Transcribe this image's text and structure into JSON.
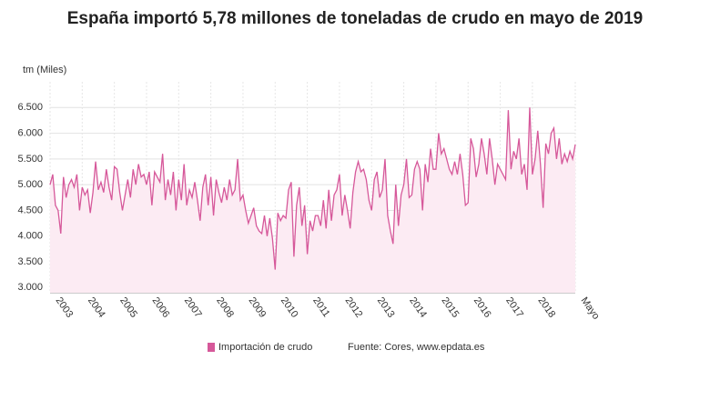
{
  "chart_data": {
    "type": "line",
    "title": "España importó 5,78 millones de toneladas de crudo en mayo de 2019",
    "y_label": "tm (Miles)",
    "source": "Fuente: Cores, www.epdata.es",
    "legend": "bottom",
    "categories": [
      "2003",
      null,
      null,
      null,
      null,
      null,
      null,
      null,
      null,
      null,
      null,
      null,
      "2004",
      null,
      null,
      null,
      null,
      null,
      null,
      null,
      null,
      null,
      null,
      null,
      "2005",
      null,
      null,
      null,
      null,
      null,
      null,
      null,
      null,
      null,
      null,
      null,
      "2006",
      null,
      null,
      null,
      null,
      null,
      null,
      null,
      null,
      null,
      null,
      null,
      "2007",
      null,
      null,
      null,
      null,
      null,
      null,
      null,
      null,
      null,
      null,
      null,
      "2008",
      null,
      null,
      null,
      null,
      null,
      null,
      null,
      null,
      null,
      null,
      null,
      "2009",
      null,
      null,
      null,
      null,
      null,
      null,
      null,
      null,
      null,
      null,
      null,
      "2010",
      null,
      null,
      null,
      null,
      null,
      null,
      null,
      null,
      null,
      null,
      null,
      "2011",
      null,
      null,
      null,
      null,
      null,
      null,
      null,
      null,
      null,
      null,
      null,
      "2012",
      null,
      null,
      null,
      null,
      null,
      null,
      null,
      null,
      null,
      null,
      null,
      "2013",
      null,
      null,
      null,
      null,
      null,
      null,
      null,
      null,
      null,
      null,
      null,
      "2014",
      null,
      null,
      null,
      null,
      null,
      null,
      null,
      null,
      null,
      null,
      null,
      "2015",
      null,
      null,
      null,
      null,
      null,
      null,
      null,
      null,
      null,
      null,
      null,
      "2016",
      null,
      null,
      null,
      null,
      null,
      null,
      null,
      null,
      null,
      null,
      null,
      "2017",
      null,
      null,
      null,
      null,
      null,
      null,
      null,
      null,
      null,
      null,
      null,
      "2018",
      null,
      null,
      null,
      null,
      null,
      null,
      null,
      null,
      null,
      null,
      null,
      null,
      null,
      null,
      null,
      "Mayo"
    ],
    "series": [
      {
        "name": "Importación de crudo",
        "color": "#d6589a",
        "values": [
          5000,
          5200,
          4600,
          4500,
          4050,
          5150,
          4750,
          5000,
          5100,
          4950,
          5200,
          4500,
          4950,
          4800,
          4900,
          4450,
          4850,
          5450,
          4900,
          5050,
          4850,
          5300,
          4950,
          4700,
          5350,
          5300,
          4850,
          4500,
          4800,
          5100,
          4750,
          5300,
          5000,
          5400,
          5150,
          5200,
          5000,
          5250,
          4600,
          5250,
          5150,
          5050,
          5600,
          4700,
          5100,
          4800,
          5250,
          4500,
          5100,
          4700,
          5400,
          4600,
          4900,
          4750,
          5050,
          4700,
          4300,
          4950,
          5200,
          4600,
          5150,
          4400,
          5100,
          4850,
          4650,
          4950,
          4700,
          5100,
          4800,
          4900,
          5500,
          4700,
          4800,
          4500,
          4250,
          4400,
          4550,
          4200,
          4100,
          4050,
          4400,
          4000,
          4350,
          3950,
          3350,
          4450,
          4300,
          4400,
          4350,
          4900,
          5050,
          3600,
          4600,
          4950,
          4200,
          4600,
          3650,
          4300,
          4100,
          4400,
          4400,
          4200,
          4700,
          4150,
          4900,
          4300,
          4800,
          4900,
          5200,
          4400,
          4800,
          4500,
          4150,
          4850,
          5250,
          5450,
          5250,
          5300,
          5100,
          4700,
          4500,
          5100,
          5250,
          4750,
          4900,
          5500,
          4400,
          4100,
          3850,
          5000,
          4200,
          4800,
          5000,
          5500,
          4750,
          4800,
          5300,
          5450,
          5300,
          4500,
          5400,
          5050,
          5700,
          5300,
          5300,
          6000,
          5600,
          5700,
          5500,
          5300,
          5200,
          5450,
          5200,
          5600,
          5200,
          4600,
          4650,
          5900,
          5700,
          5150,
          5400,
          5900,
          5600,
          5200,
          5900,
          5500,
          5000,
          5400,
          5300,
          5200,
          5100,
          6450,
          5300,
          5650,
          5500,
          5900,
          5200,
          5400,
          4900,
          6500,
          5200,
          5500,
          6050,
          5400,
          4550,
          5800,
          5600,
          6000,
          6100,
          5500,
          5900,
          5400,
          5600,
          5450,
          5650,
          5500,
          5780
        ]
      }
    ],
    "ylim": [
      2900,
      7000
    ],
    "yticks": [
      {
        "value": 3000,
        "label": "3.000"
      },
      {
        "value": 3500,
        "label": "3.500"
      },
      {
        "value": 4000,
        "label": "4.000"
      },
      {
        "value": 4500,
        "label": "4.500"
      },
      {
        "value": 5000,
        "label": "5.000"
      },
      {
        "value": 5500,
        "label": "5.500"
      },
      {
        "value": 6000,
        "label": "6.000"
      },
      {
        "value": 6500,
        "label": "6.500"
      }
    ],
    "grid": true
  }
}
